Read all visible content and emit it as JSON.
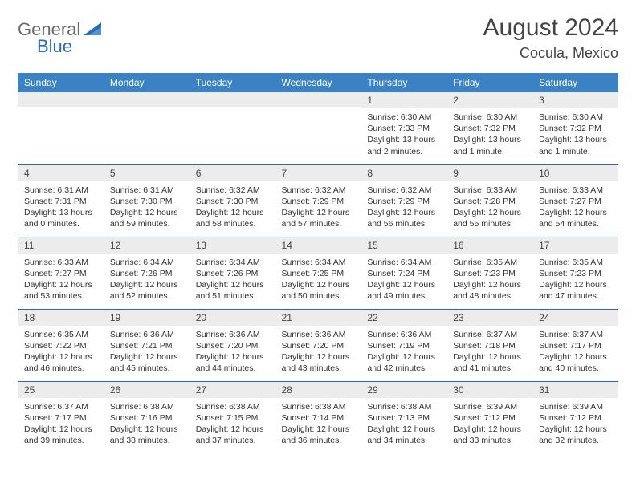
{
  "logo": {
    "general": "General",
    "blue": "Blue"
  },
  "title": "August 2024",
  "location": "Cocula, Mexico",
  "colors": {
    "header_bg": "#3b82c4",
    "header_fg": "#ffffff",
    "daynum_bg": "#ececec",
    "border": "#2a6bb0",
    "text": "#333333",
    "title_text": "#444444",
    "logo_gray": "#6b6b6b",
    "logo_blue": "#2a6bb0"
  },
  "weekdays": [
    "Sunday",
    "Monday",
    "Tuesday",
    "Wednesday",
    "Thursday",
    "Friday",
    "Saturday"
  ],
  "weeks": [
    [
      null,
      null,
      null,
      null,
      {
        "n": "1",
        "sr": "6:30 AM",
        "ss": "7:33 PM",
        "dl": "13 hours and 2 minutes."
      },
      {
        "n": "2",
        "sr": "6:30 AM",
        "ss": "7:32 PM",
        "dl": "13 hours and 1 minute."
      },
      {
        "n": "3",
        "sr": "6:30 AM",
        "ss": "7:32 PM",
        "dl": "13 hours and 1 minute."
      }
    ],
    [
      {
        "n": "4",
        "sr": "6:31 AM",
        "ss": "7:31 PM",
        "dl": "13 hours and 0 minutes."
      },
      {
        "n": "5",
        "sr": "6:31 AM",
        "ss": "7:30 PM",
        "dl": "12 hours and 59 minutes."
      },
      {
        "n": "6",
        "sr": "6:32 AM",
        "ss": "7:30 PM",
        "dl": "12 hours and 58 minutes."
      },
      {
        "n": "7",
        "sr": "6:32 AM",
        "ss": "7:29 PM",
        "dl": "12 hours and 57 minutes."
      },
      {
        "n": "8",
        "sr": "6:32 AM",
        "ss": "7:29 PM",
        "dl": "12 hours and 56 minutes."
      },
      {
        "n": "9",
        "sr": "6:33 AM",
        "ss": "7:28 PM",
        "dl": "12 hours and 55 minutes."
      },
      {
        "n": "10",
        "sr": "6:33 AM",
        "ss": "7:27 PM",
        "dl": "12 hours and 54 minutes."
      }
    ],
    [
      {
        "n": "11",
        "sr": "6:33 AM",
        "ss": "7:27 PM",
        "dl": "12 hours and 53 minutes."
      },
      {
        "n": "12",
        "sr": "6:34 AM",
        "ss": "7:26 PM",
        "dl": "12 hours and 52 minutes."
      },
      {
        "n": "13",
        "sr": "6:34 AM",
        "ss": "7:26 PM",
        "dl": "12 hours and 51 minutes."
      },
      {
        "n": "14",
        "sr": "6:34 AM",
        "ss": "7:25 PM",
        "dl": "12 hours and 50 minutes."
      },
      {
        "n": "15",
        "sr": "6:34 AM",
        "ss": "7:24 PM",
        "dl": "12 hours and 49 minutes."
      },
      {
        "n": "16",
        "sr": "6:35 AM",
        "ss": "7:23 PM",
        "dl": "12 hours and 48 minutes."
      },
      {
        "n": "17",
        "sr": "6:35 AM",
        "ss": "7:23 PM",
        "dl": "12 hours and 47 minutes."
      }
    ],
    [
      {
        "n": "18",
        "sr": "6:35 AM",
        "ss": "7:22 PM",
        "dl": "12 hours and 46 minutes."
      },
      {
        "n": "19",
        "sr": "6:36 AM",
        "ss": "7:21 PM",
        "dl": "12 hours and 45 minutes."
      },
      {
        "n": "20",
        "sr": "6:36 AM",
        "ss": "7:20 PM",
        "dl": "12 hours and 44 minutes."
      },
      {
        "n": "21",
        "sr": "6:36 AM",
        "ss": "7:20 PM",
        "dl": "12 hours and 43 minutes."
      },
      {
        "n": "22",
        "sr": "6:36 AM",
        "ss": "7:19 PM",
        "dl": "12 hours and 42 minutes."
      },
      {
        "n": "23",
        "sr": "6:37 AM",
        "ss": "7:18 PM",
        "dl": "12 hours and 41 minutes."
      },
      {
        "n": "24",
        "sr": "6:37 AM",
        "ss": "7:17 PM",
        "dl": "12 hours and 40 minutes."
      }
    ],
    [
      {
        "n": "25",
        "sr": "6:37 AM",
        "ss": "7:17 PM",
        "dl": "12 hours and 39 minutes."
      },
      {
        "n": "26",
        "sr": "6:38 AM",
        "ss": "7:16 PM",
        "dl": "12 hours and 38 minutes."
      },
      {
        "n": "27",
        "sr": "6:38 AM",
        "ss": "7:15 PM",
        "dl": "12 hours and 37 minutes."
      },
      {
        "n": "28",
        "sr": "6:38 AM",
        "ss": "7:14 PM",
        "dl": "12 hours and 36 minutes."
      },
      {
        "n": "29",
        "sr": "6:38 AM",
        "ss": "7:13 PM",
        "dl": "12 hours and 34 minutes."
      },
      {
        "n": "30",
        "sr": "6:39 AM",
        "ss": "7:12 PM",
        "dl": "12 hours and 33 minutes."
      },
      {
        "n": "31",
        "sr": "6:39 AM",
        "ss": "7:12 PM",
        "dl": "12 hours and 32 minutes."
      }
    ]
  ],
  "labels": {
    "sunrise": "Sunrise:",
    "sunset": "Sunset:",
    "daylight": "Daylight:"
  }
}
